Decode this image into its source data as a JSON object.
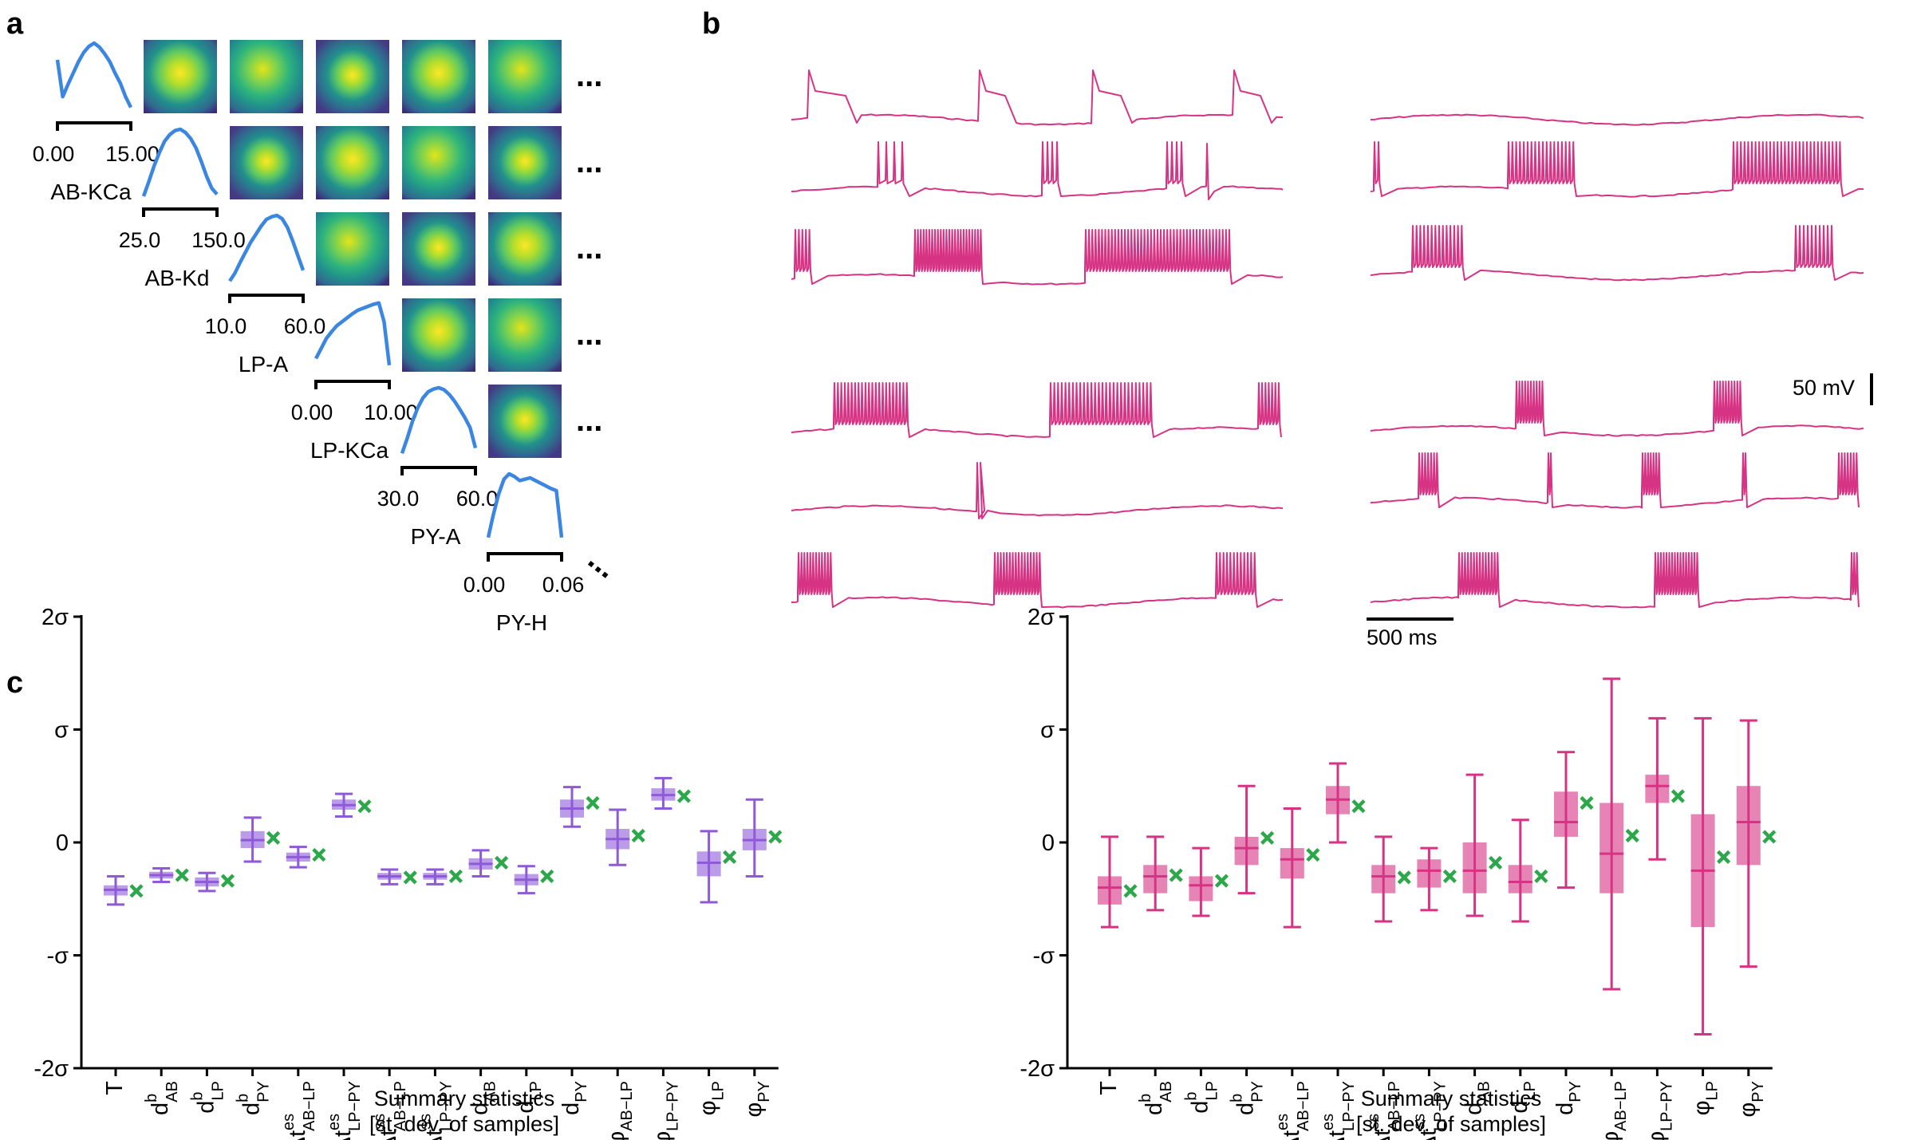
{
  "panels": {
    "a": "a",
    "b": "b",
    "c": "c"
  },
  "panel_a": {
    "params": [
      {
        "name": "AB-KCa",
        "range": [
          "0.00",
          "15.00"
        ]
      },
      {
        "name": "AB-Kd",
        "range": [
          "25.0",
          "150.0"
        ]
      },
      {
        "name": "LP-A",
        "range": [
          "10.0",
          "60.0"
        ]
      },
      {
        "name": "LP-KCa",
        "range": [
          "0.00",
          "10.00"
        ]
      },
      {
        "name": "PY-A",
        "range": [
          "30.0",
          "60.0"
        ]
      },
      {
        "name": "PY-H",
        "range": [
          "0.00",
          "0.06"
        ]
      }
    ],
    "ellipsis": "...",
    "colors": {
      "marginal": "#3b86e0",
      "heat_low": "#440154",
      "heat_mid": "#31688e",
      "heat_teal": "#21918c",
      "heat_green": "#5ec962",
      "heat_high": "#fde725"
    }
  },
  "panel_b": {
    "trace_color": "#d63384",
    "scalebar_voltage": "50 mV",
    "scalebar_time": "500 ms"
  },
  "panel_c": {
    "yticks": [
      "2σ",
      "σ",
      "0",
      "-σ",
      "-2σ"
    ],
    "xlabel_line1": "Summary statistics",
    "xlabel_line2": "[st. dev. of samples]",
    "stats": [
      {
        "base": "T",
        "sup": "",
        "sub": ""
      },
      {
        "base": "d",
        "sup": "b",
        "sub": "AB"
      },
      {
        "base": "d",
        "sup": "b",
        "sub": "LP"
      },
      {
        "base": "d",
        "sup": "b",
        "sub": "PY"
      },
      {
        "base": "Δt",
        "sup": "es",
        "sub": "AB−LP"
      },
      {
        "base": "Δt",
        "sup": "es",
        "sub": "LP−PY"
      },
      {
        "base": "Δt",
        "sup": "ss",
        "sub": "AB−LP"
      },
      {
        "base": "Δt",
        "sup": "ss",
        "sub": "LP−PY"
      },
      {
        "base": "d",
        "sup": "",
        "sub": "AB"
      },
      {
        "base": "d",
        "sup": "",
        "sub": "LP"
      },
      {
        "base": "d",
        "sup": "",
        "sub": "PY"
      },
      {
        "base": "Δφ",
        "sup": "",
        "sub": "AB−LP"
      },
      {
        "base": "Δφ",
        "sup": "",
        "sub": "LP−PY"
      },
      {
        "base": "φ",
        "sup": "",
        "sub": "LP"
      },
      {
        "base": "φ",
        "sup": "",
        "sub": "PY"
      }
    ],
    "observed_marker_color": "#2ca84a"
  },
  "chart_data": [
    {
      "type": "box",
      "color": "#8e5ad8",
      "ylim": [
        -2,
        2
      ],
      "ylabel": "",
      "xlabel": "Summary statistics [st. dev. of samples]",
      "grid": false,
      "categories": [
        "T",
        "d^b_AB",
        "d^b_LP",
        "d^b_PY",
        "Δt^es_AB−LP",
        "Δt^es_LP−PY",
        "Δt^ss_AB−LP",
        "Δt^ss_LP−PY",
        "d_AB",
        "d_LP",
        "d_PY",
        "Δφ_AB−LP",
        "Δφ_LP−PY",
        "φ_LP",
        "φ_PY"
      ],
      "boxes": [
        {
          "whislo": -0.55,
          "q1": -0.47,
          "med": -0.42,
          "q3": -0.38,
          "whishi": -0.3
        },
        {
          "whislo": -0.35,
          "q1": -0.32,
          "med": -0.29,
          "q3": -0.26,
          "whishi": -0.23
        },
        {
          "whislo": -0.43,
          "q1": -0.39,
          "med": -0.35,
          "q3": -0.31,
          "whishi": -0.27
        },
        {
          "whislo": -0.17,
          "q1": -0.05,
          "med": 0.02,
          "q3": 0.1,
          "whishi": 0.22
        },
        {
          "whislo": -0.22,
          "q1": -0.17,
          "med": -0.13,
          "q3": -0.09,
          "whishi": -0.04
        },
        {
          "whislo": 0.23,
          "q1": 0.29,
          "med": 0.33,
          "q3": 0.38,
          "whishi": 0.43
        },
        {
          "whislo": -0.37,
          "q1": -0.33,
          "med": -0.3,
          "q3": -0.27,
          "whishi": -0.24
        },
        {
          "whislo": -0.37,
          "q1": -0.33,
          "med": -0.3,
          "q3": -0.27,
          "whishi": -0.24
        },
        {
          "whislo": -0.3,
          "q1": -0.24,
          "med": -0.19,
          "q3": -0.14,
          "whishi": -0.07
        },
        {
          "whislo": -0.45,
          "q1": -0.38,
          "med": -0.33,
          "q3": -0.28,
          "whishi": -0.21
        },
        {
          "whislo": 0.14,
          "q1": 0.22,
          "med": 0.3,
          "q3": 0.38,
          "whishi": 0.49
        },
        {
          "whislo": -0.2,
          "q1": -0.06,
          "med": 0.03,
          "q3": 0.12,
          "whishi": 0.29
        },
        {
          "whislo": 0.3,
          "q1": 0.37,
          "med": 0.42,
          "q3": 0.48,
          "whishi": 0.57
        },
        {
          "whislo": -0.53,
          "q1": -0.3,
          "med": -0.18,
          "q3": -0.08,
          "whishi": 0.1
        },
        {
          "whislo": -0.3,
          "q1": -0.07,
          "med": 0.02,
          "q3": 0.12,
          "whishi": 0.38
        }
      ],
      "observed": [
        -0.43,
        -0.29,
        -0.34,
        0.04,
        -0.11,
        0.32,
        -0.31,
        -0.3,
        -0.18,
        -0.3,
        0.35,
        0.06,
        0.41,
        -0.13,
        0.05
      ]
    },
    {
      "type": "box",
      "color": "#d63384",
      "ylim": [
        -2,
        2
      ],
      "ylabel": "",
      "xlabel": "Summary statistics [st. dev. of samples]",
      "grid": false,
      "categories": [
        "T",
        "d^b_AB",
        "d^b_LP",
        "d^b_PY",
        "Δt^es_AB−LP",
        "Δt^es_LP−PY",
        "Δt^ss_AB−LP",
        "Δt^ss_LP−PY",
        "d_AB",
        "d_LP",
        "d_PY",
        "Δφ_AB−LP",
        "Δφ_LP−PY",
        "φ_LP",
        "φ_PY"
      ],
      "boxes": [
        {
          "whislo": -0.75,
          "q1": -0.55,
          "med": -0.4,
          "q3": -0.3,
          "whishi": 0.05
        },
        {
          "whislo": -0.6,
          "q1": -0.45,
          "med": -0.3,
          "q3": -0.2,
          "whishi": 0.05
        },
        {
          "whislo": -0.65,
          "q1": -0.52,
          "med": -0.38,
          "q3": -0.3,
          "whishi": -0.05
        },
        {
          "whislo": -0.45,
          "q1": -0.2,
          "med": -0.05,
          "q3": 0.05,
          "whishi": 0.5
        },
        {
          "whislo": -0.75,
          "q1": -0.32,
          "med": -0.15,
          "q3": -0.05,
          "whishi": 0.3
        },
        {
          "whislo": 0.0,
          "q1": 0.25,
          "med": 0.38,
          "q3": 0.5,
          "whishi": 0.7
        },
        {
          "whislo": -0.7,
          "q1": -0.45,
          "med": -0.3,
          "q3": -0.2,
          "whishi": 0.05
        },
        {
          "whislo": -0.6,
          "q1": -0.4,
          "med": -0.25,
          "q3": -0.15,
          "whishi": -0.05
        },
        {
          "whislo": -0.65,
          "q1": -0.45,
          "med": -0.25,
          "q3": 0.0,
          "whishi": 0.6
        },
        {
          "whislo": -0.7,
          "q1": -0.45,
          "med": -0.35,
          "q3": -0.2,
          "whishi": 0.2
        },
        {
          "whislo": -0.4,
          "q1": 0.05,
          "med": 0.18,
          "q3": 0.45,
          "whishi": 0.8
        },
        {
          "whislo": -1.3,
          "q1": -0.45,
          "med": -0.1,
          "q3": 0.35,
          "whishi": 1.45
        },
        {
          "whislo": -0.15,
          "q1": 0.35,
          "med": 0.5,
          "q3": 0.6,
          "whishi": 1.1
        },
        {
          "whislo": -1.7,
          "q1": -0.75,
          "med": -0.25,
          "q3": 0.25,
          "whishi": 1.1
        },
        {
          "whislo": -1.1,
          "q1": -0.2,
          "med": 0.18,
          "q3": 0.5,
          "whishi": 1.08
        }
      ],
      "observed": [
        -0.43,
        -0.29,
        -0.34,
        0.04,
        -0.11,
        0.32,
        -0.31,
        -0.3,
        -0.18,
        -0.3,
        0.35,
        0.06,
        0.41,
        -0.13,
        0.05
      ]
    }
  ]
}
